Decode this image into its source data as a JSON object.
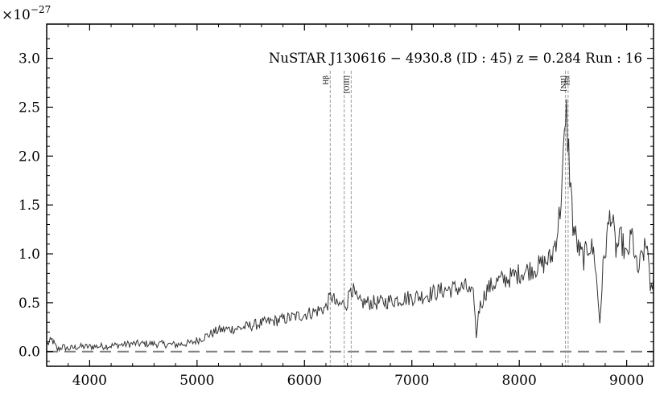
{
  "chart_data": {
    "type": "line",
    "title": "NuSTAR J130616 − 4930.8 (ID : 45)   z = 0.284   Run : 16",
    "xlabel": "",
    "ylabel": "",
    "y_multiplier_label": "×10",
    "y_multiplier_exponent": "−27",
    "xlim": [
      3600,
      9250
    ],
    "ylim": [
      -0.15,
      3.35
    ],
    "x_ticks": [
      4000,
      5000,
      6000,
      7000,
      8000,
      9000
    ],
    "y_ticks": [
      0.0,
      0.5,
      1.0,
      1.5,
      2.0,
      2.5,
      3.0
    ],
    "x_tick_labels": [
      "4000",
      "5000",
      "6000",
      "7000",
      "8000",
      "9000"
    ],
    "y_tick_labels": [
      "0.0",
      "0.5",
      "1.0",
      "1.5",
      "2.0",
      "2.5",
      "3.0"
    ],
    "grid": false,
    "zero_line": {
      "y": 0.0,
      "style": "dashed",
      "color": "#808080"
    },
    "emission_lines": [
      {
        "label": "Hβ",
        "x": 6240
      },
      {
        "label": "",
        "x": 6370
      },
      {
        "label": "[OIII]",
        "x": 6435
      },
      {
        "label": "Hα",
        "x": 8430
      },
      {
        "label": "[NII]",
        "x": 8455
      }
    ],
    "series": [
      {
        "color": "#333333",
        "points": [
          [
            3600,
            0.07
          ],
          [
            3650,
            0.12
          ],
          [
            3700,
            0.02
          ],
          [
            3750,
            0.05
          ],
          [
            3800,
            0.03
          ],
          [
            3900,
            0.05
          ],
          [
            4000,
            0.05
          ],
          [
            4200,
            0.06
          ],
          [
            4400,
            0.08
          ],
          [
            4600,
            0.08
          ],
          [
            4800,
            0.07
          ],
          [
            4950,
            0.09
          ],
          [
            5050,
            0.14
          ],
          [
            5200,
            0.22
          ],
          [
            5400,
            0.24
          ],
          [
            5600,
            0.29
          ],
          [
            5800,
            0.33
          ],
          [
            6000,
            0.38
          ],
          [
            6100,
            0.41
          ],
          [
            6200,
            0.45
          ],
          [
            6250,
            0.58
          ],
          [
            6300,
            0.47
          ],
          [
            6400,
            0.5
          ],
          [
            6430,
            0.68
          ],
          [
            6500,
            0.5
          ],
          [
            6700,
            0.5
          ],
          [
            6900,
            0.54
          ],
          [
            7100,
            0.57
          ],
          [
            7300,
            0.63
          ],
          [
            7500,
            0.66
          ],
          [
            7580,
            0.55
          ],
          [
            7600,
            0.12
          ],
          [
            7620,
            0.42
          ],
          [
            7700,
            0.64
          ],
          [
            7800,
            0.72
          ],
          [
            7900,
            0.75
          ],
          [
            8000,
            0.8
          ],
          [
            8100,
            0.84
          ],
          [
            8200,
            0.88
          ],
          [
            8300,
            0.96
          ],
          [
            8350,
            1.2
          ],
          [
            8380,
            1.45
          ],
          [
            8410,
            1.95
          ],
          [
            8440,
            2.4
          ],
          [
            8470,
            1.85
          ],
          [
            8500,
            1.3
          ],
          [
            8550,
            1.05
          ],
          [
            8600,
            0.95
          ],
          [
            8650,
            1.1
          ],
          [
            8700,
            1.0
          ],
          [
            8750,
            0.3
          ],
          [
            8780,
            0.85
          ],
          [
            8850,
            1.45
          ],
          [
            8900,
            1.05
          ],
          [
            8950,
            1.15
          ],
          [
            9000,
            0.95
          ],
          [
            9050,
            1.2
          ],
          [
            9100,
            0.8
          ],
          [
            9150,
            1.0
          ],
          [
            9200,
            1.1
          ],
          [
            9220,
            0.55
          ],
          [
            9250,
            0.75
          ]
        ]
      }
    ]
  }
}
